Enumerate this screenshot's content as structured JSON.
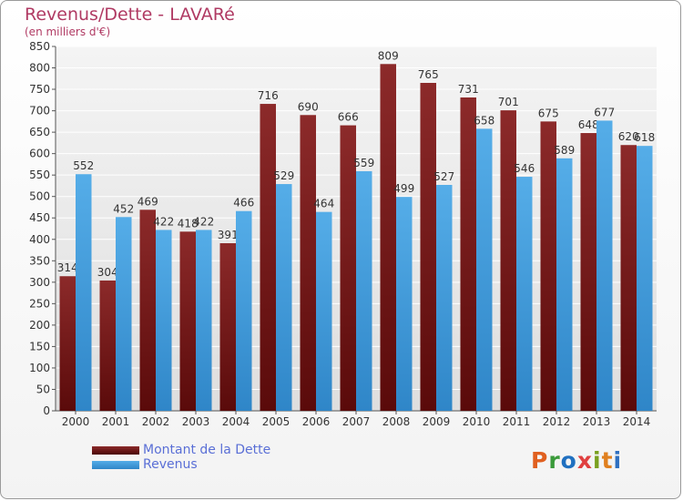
{
  "title": "Revenus/Dette - LAVARé",
  "subtitle": "(en milliers d'€)",
  "logo_text": "Proxiti",
  "colors": {
    "dette": "#7a1c1c",
    "revenus": "#4aa3e0",
    "title": "#b03a63",
    "legend_text": "#5a6fd6",
    "logo": [
      "#e06020",
      "#3a9a3a",
      "#2070c0",
      "#e04040",
      "#7aa020",
      "#e08020",
      "#3070c0"
    ]
  },
  "chart_data": {
    "type": "bar",
    "title": "Revenus/Dette - LAVARé",
    "subtitle": "(en milliers d'€)",
    "categories": [
      "2000",
      "2001",
      "2002",
      "2003",
      "2004",
      "2005",
      "2006",
      "2007",
      "2008",
      "2009",
      "2010",
      "2011",
      "2012",
      "2013",
      "2014"
    ],
    "series": [
      {
        "name": "Montant de la Dette",
        "values": [
          314,
          304,
          469,
          418,
          391,
          716,
          690,
          666,
          809,
          765,
          731,
          701,
          675,
          648,
          620
        ]
      },
      {
        "name": "Revenus",
        "values": [
          552,
          452,
          422,
          422,
          466,
          529,
          464,
          559,
          499,
          527,
          658,
          546,
          589,
          677,
          618
        ]
      }
    ],
    "ylim": [
      0,
      850
    ],
    "yticks": [
      0,
      50,
      100,
      150,
      200,
      250,
      300,
      350,
      400,
      450,
      500,
      550,
      600,
      650,
      700,
      750,
      800,
      850
    ],
    "grid": true,
    "legend_position": "bottom-left"
  }
}
